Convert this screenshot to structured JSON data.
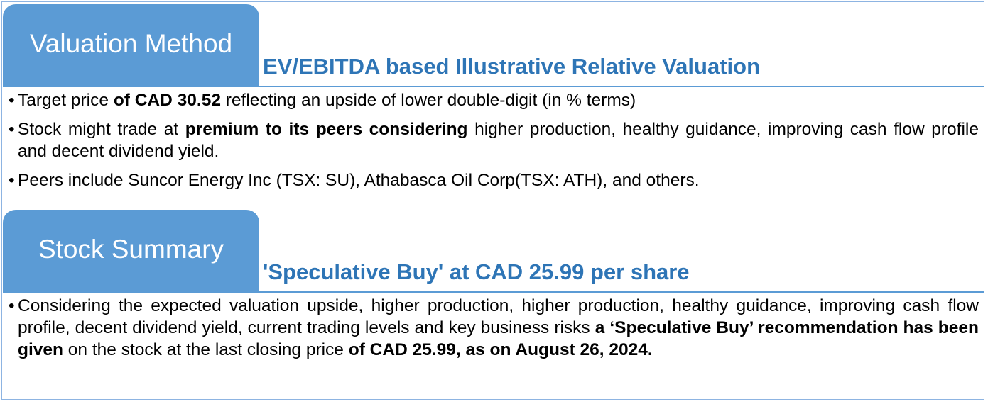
{
  "valuation": {
    "tab_label": "Valuation Method",
    "subtitle": "EV/EBITDA based Illustrative Relative Valuation",
    "bullets": [
      {
        "parts": [
          {
            "text": "Target price ",
            "bold": false
          },
          {
            "text": "of CAD 30.52",
            "bold": true
          },
          {
            "text": " reflecting an upside of lower double-digit (in % terms)",
            "bold": false
          }
        ]
      },
      {
        "parts": [
          {
            "text": "Stock might trade at ",
            "bold": false
          },
          {
            "text": "premium to its peers considering",
            "bold": true
          },
          {
            "text": " higher production, healthy guidance, improving cash flow profile and decent dividend yield.",
            "bold": false
          }
        ]
      },
      {
        "parts": [
          {
            "text": "Peers include Suncor Energy Inc (TSX: SU), Athabasca Oil Corp(TSX: ATH), and others.",
            "bold": false
          }
        ]
      }
    ]
  },
  "summary": {
    "tab_label": "Stock Summary",
    "subtitle": "'Speculative Buy' at CAD 25.99 per share",
    "bullets": [
      {
        "parts": [
          {
            "text": "Considering the expected valuation upside, higher production, higher production, healthy guidance, improving cash flow profile, decent dividend yield, current trading levels and key business risks ",
            "bold": false
          },
          {
            "text": "a ‘Speculative Buy’ recommendation has been given",
            "bold": true
          },
          {
            "text": " on the stock at the last closing price ",
            "bold": false
          },
          {
            "text": "of CAD 25.99, as on August 26, 2024.",
            "bold": true
          }
        ]
      }
    ]
  },
  "bullet_glyph": "•"
}
